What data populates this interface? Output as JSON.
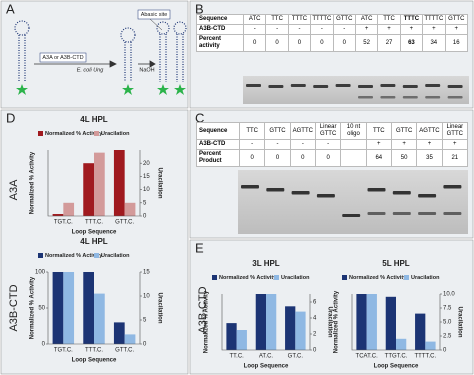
{
  "panels": {
    "labels": [
      "A",
      "B",
      "C",
      "D",
      "E"
    ]
  },
  "diagram": {
    "enzyme": "A3A or A3B-CTD",
    "glycosylase": "E. coli Ung",
    "base": "NaOH",
    "callout": "Abasic site"
  },
  "table_b": {
    "header": [
      "Sequence",
      "ATC",
      "TTC",
      "TTTC",
      "TTTTC",
      "GTTC",
      "ATC",
      "TTC",
      "TTTC",
      "TTTTC",
      "GTTC"
    ],
    "rows": [
      [
        "A3B-CTD",
        "-",
        "-",
        "-",
        "-",
        "-",
        "+",
        "+",
        "+",
        "+",
        "+"
      ],
      [
        "Percent activity",
        0,
        0,
        0,
        0,
        0,
        52,
        27,
        63,
        34,
        16
      ]
    ]
  },
  "table_c": {
    "header": [
      "Sequence",
      "TTC",
      "GTTC",
      "AGTTC",
      "Linear GTTC",
      "10 nt oligo",
      "TTC",
      "GTTC",
      "AGTTC",
      "Linear GTTC"
    ],
    "rows": [
      [
        "A3B-CTD",
        "-",
        "-",
        "-",
        "-",
        null,
        "+",
        "+",
        "+",
        "+"
      ],
      [
        "Percent Product",
        0,
        0,
        0,
        0,
        null,
        64,
        50,
        35,
        21
      ]
    ]
  },
  "side_labels": {
    "d_top": "A3A",
    "d_bottom": "A3B-CTD",
    "e": "A3B-CTD"
  },
  "chart_data": [
    {
      "type": "bar",
      "title": "4L HPL",
      "xlabel": "Loop Sequence",
      "ylabel": "Normalized % Activity",
      "y2label": "Uracilation",
      "categories": [
        "TGT.C.",
        "TTT.C.",
        "GTT.C."
      ],
      "series": [
        {
          "name": "Normalized % Activity",
          "color": "#a01a1f",
          "values": [
            3,
            80,
            100
          ]
        },
        {
          "name": "Uracilation",
          "color": "#d39a9a",
          "values": [
            5,
            24,
            5
          ],
          "axis": "y2"
        }
      ],
      "ylim": [
        0,
        100
      ],
      "y2lim": [
        0,
        25
      ],
      "y2ticks": [
        0,
        5,
        10,
        15,
        20
      ]
    },
    {
      "type": "bar",
      "title": "4L HPL",
      "xlabel": "Loop Sequence",
      "ylabel": "Normalized % Activity",
      "y2label": "Uracilation",
      "categories": [
        "TGT.C.",
        "TTT.C.",
        "GTT.C."
      ],
      "series": [
        {
          "name": "Normalized % Activity",
          "color": "#1c3474",
          "values": [
            100,
            100,
            30
          ]
        },
        {
          "name": "Uracilation",
          "color": "#8fb8e3",
          "values": [
            15,
            10.5,
            2
          ],
          "axis": "y2"
        }
      ],
      "ylim": [
        0,
        100
      ],
      "yticks": [
        0,
        50,
        100
      ],
      "y2lim": [
        0,
        15
      ],
      "y2ticks": [
        0,
        5,
        10,
        15
      ]
    },
    {
      "type": "bar",
      "title": "3L HPL",
      "xlabel": "Loop Sequence",
      "ylabel": "Normalized % Activity",
      "y2label": "Uracilation",
      "categories": [
        "TT.C.",
        "AT.C.",
        "GT.C."
      ],
      "series": [
        {
          "name": "Normalized % Activity",
          "color": "#1c3474",
          "values": [
            48,
            100,
            78
          ]
        },
        {
          "name": "Uracilation",
          "color": "#8fb8e3",
          "values": [
            2.5,
            7,
            4.8
          ],
          "axis": "y2"
        }
      ],
      "ylim": [
        0,
        100
      ],
      "y2lim": [
        0,
        7
      ],
      "y2ticks": [
        0,
        2,
        4,
        6
      ]
    },
    {
      "type": "bar",
      "title": "5L HPL",
      "xlabel": "Loop Sequence",
      "ylabel": "Normalized % Activity",
      "y2label": "Uracilation",
      "categories": [
        "TCAT.C.",
        "TTGT.C.",
        "TTTT.C."
      ],
      "series": [
        {
          "name": "Normalized % Activity",
          "color": "#1c3474",
          "values": [
            100,
            95,
            65
          ]
        },
        {
          "name": "Uracilation",
          "color": "#8fb8e3",
          "values": [
            10,
            2,
            1.5
          ],
          "axis": "y2"
        }
      ],
      "ylim": [
        0,
        100
      ],
      "y2lim": [
        0,
        10
      ],
      "y2ticks": [
        0,
        {
          "value": 2.5,
          "label": "2.5"
        },
        {
          "value": 5,
          "label": "5.0"
        },
        {
          "value": 7.5,
          "label": "7.5"
        },
        {
          "value": 10,
          "label": "10.0"
        }
      ]
    }
  ]
}
